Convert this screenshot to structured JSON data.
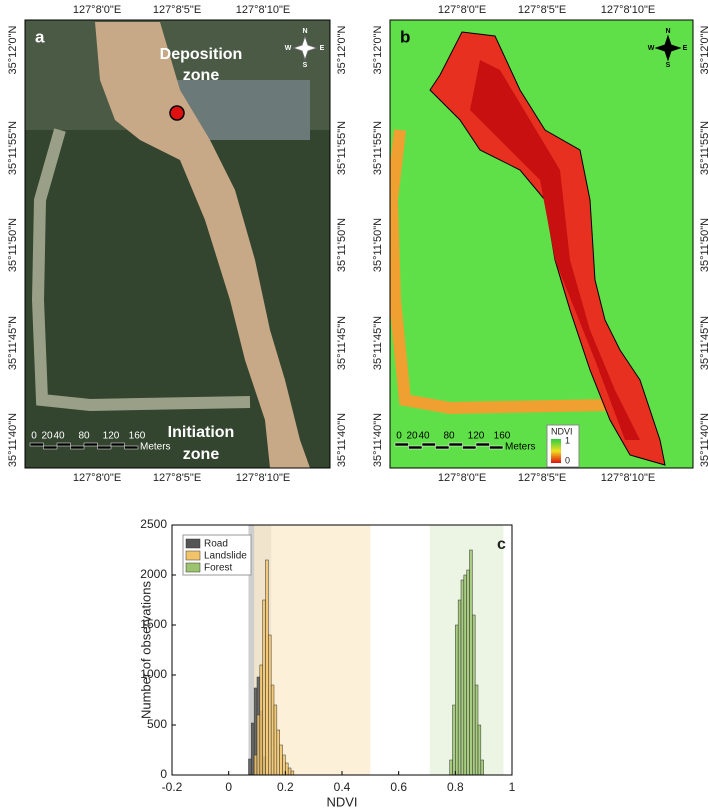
{
  "maps": [
    {
      "label": "a",
      "lon_labels": [
        "127°8'0\"E",
        "127°8'5\"E",
        "127°8'10\"E"
      ],
      "lat_labels": [
        "35°12'0\"N",
        "35°11'55\"N",
        "35°11'50\"N",
        "35°11'45\"N",
        "35°11'40\"N"
      ],
      "annotations": [
        "Deposition",
        "zone",
        "Initiation",
        "zone"
      ],
      "scale_labels": [
        "0",
        "20",
        "40",
        "80",
        "120",
        "160"
      ],
      "scale_unit": "Meters",
      "compass": [
        "N",
        "S",
        "E",
        "W"
      ]
    },
    {
      "label": "b",
      "lon_labels": [
        "127°8'0\"E",
        "127°8'5\"E",
        "127°8'10\"E"
      ],
      "lat_labels": [
        "35°12'0\"N",
        "35°11'55\"N",
        "35°11'50\"N",
        "35°11'45\"N",
        "35°11'40\"N"
      ],
      "scale_labels": [
        "0",
        "20",
        "40",
        "80",
        "120",
        "160"
      ],
      "scale_unit": "Meters",
      "compass": [
        "N",
        "S",
        "E",
        "W"
      ],
      "legend": {
        "title": "NDVI",
        "max": "1",
        "min": "0"
      }
    }
  ],
  "chart_data": {
    "type": "histogram",
    "panel_label": "c",
    "x_label": "NDVI",
    "y_label": "Number of observations",
    "xlim": [
      -0.2,
      1
    ],
    "xticks": [
      -0.2,
      0,
      0.2,
      0.4,
      0.6,
      0.8,
      1
    ],
    "ylim": [
      0,
      2500
    ],
    "yticks": [
      0,
      500,
      1000,
      1500,
      2000,
      2500
    ],
    "legend": "top-left",
    "series": [
      {
        "name": "Road",
        "color": "#555555",
        "shade_color": "#bdbdbd",
        "shaded_range": [
          0.07,
          0.15
        ],
        "bins": [
          0.07,
          0.08,
          0.09,
          0.1,
          0.11,
          0.12,
          0.13
        ],
        "values": [
          160,
          520,
          870,
          980,
          640,
          180
        ]
      },
      {
        "name": "Landslide",
        "color": "#f2c46a",
        "shade_color": "#fbeccb",
        "shaded_range": [
          0.09,
          0.5
        ],
        "bins": [
          0.09,
          0.1,
          0.11,
          0.12,
          0.13,
          0.14,
          0.15,
          0.16,
          0.17,
          0.18,
          0.19,
          0.2,
          0.21,
          0.22,
          0.23
        ],
        "values": [
          200,
          600,
          1100,
          1750,
          2150,
          1400,
          900,
          700,
          450,
          300,
          200,
          120,
          70,
          40
        ]
      },
      {
        "name": "Forest",
        "color": "#9cc46e",
        "shade_color": "#e6f1da",
        "shaded_range": [
          0.71,
          0.97
        ],
        "bins": [
          0.78,
          0.79,
          0.8,
          0.81,
          0.82,
          0.83,
          0.84,
          0.85,
          0.86,
          0.87,
          0.88,
          0.89,
          0.9
        ],
        "values": [
          150,
          700,
          1500,
          1750,
          1950,
          2000,
          2050,
          2250,
          1600,
          900,
          500,
          150
        ]
      }
    ]
  }
}
